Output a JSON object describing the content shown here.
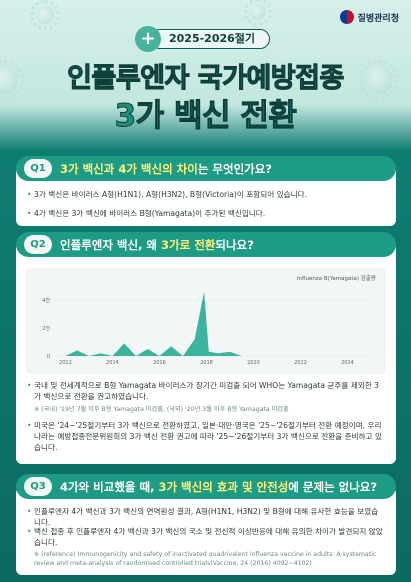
{
  "brand": {
    "org_name": "질병관리청"
  },
  "header": {
    "season": "2025-2026절기",
    "title_line1": "인플루엔자 국가예방접종",
    "title_line2": "3가 백신 전환"
  },
  "q1": {
    "badge": "Q1",
    "question_hl": "3가 백신과 4가 백신의 차이",
    "question_rest": "는 무엇인가요?",
    "bullets": [
      "3가 백신은 바이러스 A형(H1N1), A형(H3N2), B형(Victoria)이 포함되어 있습니다.",
      "4가 백신은 3가 백신에 바이러스 B형(Yamagata)이 추가된 백신입니다."
    ]
  },
  "q2": {
    "badge": "Q2",
    "question_pre": "인플루엔자 백신, 왜 ",
    "question_hl": "3가로 전환",
    "question_rest": "되나요?",
    "bullets": [
      "국내 및 전세계적으로 B형 Yamagata 바이러스가 장기간 미검출 되어 WHO는 Yamagata 균주를 제외한 3가 백신으로 전환을 권고하였습니다.",
      "미국은 '24~'25절기부터 3가 백신으로 전환하였고, 일본·대만·영국은 '25~'26절기부터 전환 예정이며, 우리나라는 예방접종전문위원회의 3가 백신 전환 권고에 따라 '25~'26절기부터 3가 백신으로 전환을 준비하고 있습니다."
    ],
    "note": "※ (국내) '19년 7월 이후 B형 Yamagata 미검출, (국외) '20년 3월 이후 B형 Yamagata 미검출"
  },
  "q3": {
    "badge": "Q3",
    "question_pre": "4가와 비교했을 때, ",
    "question_hl": "3가 백신의 효과 및 안전성",
    "question_rest": "에 문제는 없나요?",
    "bullets": [
      "인플루엔자 4가 백신과 3가 백신의 면역원성 결과, A형(H1N1, H3N2) 및 B형에 대해 유사한 효능을 보였습니다.",
      "백신 접종 후 인플루엔자 4가 백신과 3가 백신의 국소 및 전신적 이상반응에 대해 유의한 차이가 발견되지 않았습니다."
    ],
    "reference": "※ (reference) Immunogenicity and safety of inactivated quadrivalent influenza vaccine in adults: A systematic review and meta-analysis of randomised controlled trials(Vaccine, 24 (2016) 4092~4102)"
  },
  "chart_data": {
    "type": "line",
    "legend": "Influenza B(Yamagata) 검출량",
    "x": [
      2012,
      2012.5,
      2013,
      2013.5,
      2014,
      2014.5,
      2015,
      2015.5,
      2016,
      2016.5,
      2017,
      2017.5,
      2017.9,
      2018.1,
      2018.5,
      2019,
      2019.5,
      2020,
      2021,
      2022,
      2023,
      2024,
      2025
    ],
    "values": [
      0,
      400,
      0,
      200,
      0,
      900,
      0,
      500,
      0,
      700,
      0,
      1200,
      4600,
      300,
      200,
      300,
      0,
      0,
      0,
      0,
      0,
      0,
      0
    ],
    "xticks": [
      "2012",
      "2014",
      "2016",
      "2018",
      "2020",
      "2022",
      "2024"
    ],
    "yticks": [
      "0",
      "2천",
      "4천"
    ],
    "ylim": [
      0,
      5000
    ],
    "colors": {
      "fill": "#1aa88f"
    }
  }
}
